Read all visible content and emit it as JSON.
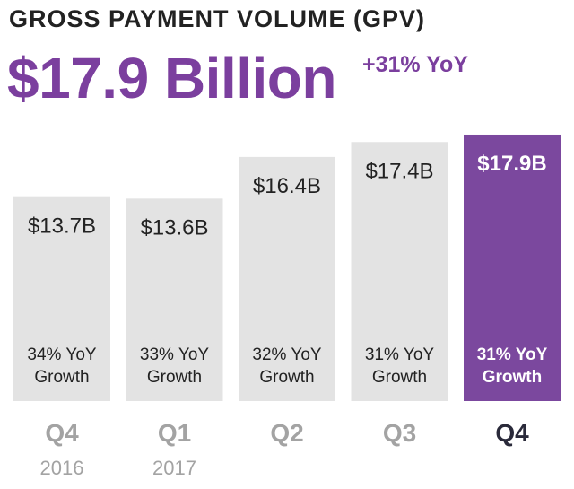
{
  "header": {
    "title": "GROSS PAYMENT VOLUME (GPV)",
    "headline": "$17.9 Billion",
    "growth": "+31% YoY"
  },
  "colors": {
    "bar_default": "#e3e3e3",
    "bar_highlight": "#7b489e",
    "accent_text": "#7b3f9e",
    "dark_text": "#222222",
    "muted_label": "#a3a3a3",
    "highlight_label": "#2a2a3a"
  },
  "chart_data": {
    "type": "bar",
    "categories": [
      "Q4",
      "Q1",
      "Q2",
      "Q3",
      "Q4"
    ],
    "years": [
      "2016",
      "2017",
      "",
      "",
      ""
    ],
    "values": [
      13.7,
      13.6,
      16.4,
      17.4,
      17.9
    ],
    "value_labels": [
      "$13.7B",
      "$13.6B",
      "$16.4B",
      "$17.4B",
      "$17.9B"
    ],
    "growth_line1": [
      "34% YoY",
      "33% YoY",
      "32% YoY",
      "31% YoY",
      "31% YoY"
    ],
    "growth_line2": [
      "Growth",
      "Growth",
      "Growth",
      "Growth",
      "Growth"
    ],
    "highlight_index": 4,
    "ylim": [
      0,
      18.2
    ],
    "grid": false,
    "legend": "none"
  }
}
